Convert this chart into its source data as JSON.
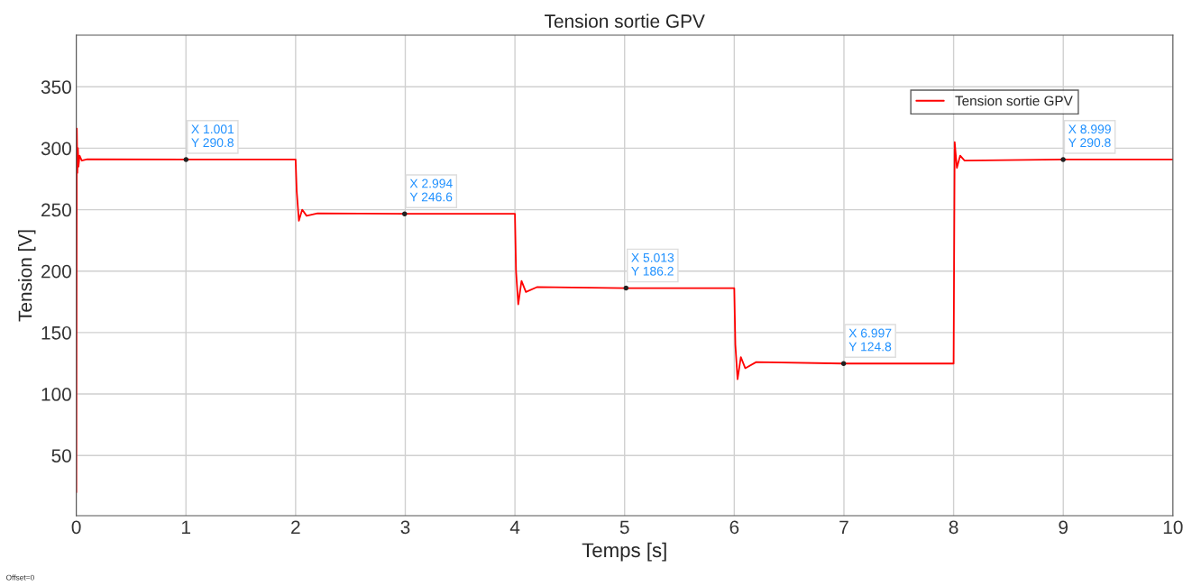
{
  "chart_data": {
    "type": "line",
    "title": "Tension sortie GPV",
    "xlabel": "Temps [s]",
    "ylabel": "Tension [V]",
    "series": [
      {
        "name": "Tension sortie GPV",
        "color": "#ff0000",
        "x": [
          0,
          0.005,
          0.01,
          0.015,
          0.02,
          0.03,
          0.05,
          0.1,
          1.001,
          2.0,
          2.01,
          2.03,
          2.06,
          2.1,
          2.2,
          2.994,
          4.0,
          4.01,
          4.03,
          4.06,
          4.1,
          4.2,
          5.013,
          6.0,
          6.01,
          6.03,
          6.06,
          6.1,
          6.2,
          6.997,
          8.0,
          8.01,
          8.03,
          8.06,
          8.1,
          8.999,
          10
        ],
        "values": [
          20,
          316,
          280,
          300,
          285,
          294,
          290,
          291,
          290.8,
          290.8,
          265,
          241,
          250,
          245,
          247,
          246.6,
          246.6,
          200,
          173,
          192,
          183,
          187,
          186.2,
          186.2,
          140,
          112,
          130,
          121,
          126,
          124.8,
          124.8,
          305,
          284,
          294,
          290,
          290.8,
          290.8
        ]
      }
    ],
    "xlim": [
      0,
      10
    ],
    "ylim": [
      1,
      392
    ],
    "xticks": [
      0,
      1,
      2,
      3,
      4,
      5,
      6,
      7,
      8,
      9,
      10
    ],
    "yticks": [
      50,
      100,
      150,
      200,
      250,
      300,
      350
    ],
    "grid": true,
    "legend": "top right",
    "annotations": [
      {
        "text": "X 1.001\nY 290.8",
        "x": 1.001,
        "y": 290.8
      },
      {
        "text": "X 2.994\nY 246.6",
        "x": 2.994,
        "y": 246.6
      },
      {
        "text": "X 5.013\nY 186.2",
        "x": 5.013,
        "y": 186.2
      },
      {
        "text": "X 6.997\nY 124.8",
        "x": 6.997,
        "y": 124.8
      },
      {
        "text": "X 8.999\nY 290.8",
        "x": 8.999,
        "y": 290.8
      },
      "Offset=0"
    ]
  }
}
